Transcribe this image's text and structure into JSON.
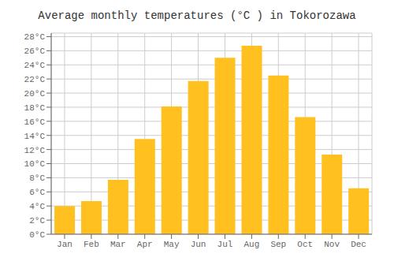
{
  "chart_data": {
    "type": "bar",
    "title": "Average monthly temperatures (°C ) in Tokorozawa",
    "categories": [
      "Jan",
      "Feb",
      "Mar",
      "Apr",
      "May",
      "Jun",
      "Jul",
      "Aug",
      "Sep",
      "Oct",
      "Nov",
      "Dec"
    ],
    "values": [
      4.0,
      4.7,
      7.7,
      13.5,
      18.1,
      21.7,
      25.0,
      26.7,
      22.5,
      16.6,
      11.3,
      6.5
    ],
    "color": "#FFC020",
    "ylim": [
      0,
      28.5
    ],
    "yticks": [
      {
        "value": 0,
        "label": "0°C"
      },
      {
        "value": 2,
        "label": "2°C"
      },
      {
        "value": 4,
        "label": "4°C"
      },
      {
        "value": 6,
        "label": "6°C"
      },
      {
        "value": 8,
        "label": "8°C"
      },
      {
        "value": 10,
        "label": "10°C"
      },
      {
        "value": 12,
        "label": "12°C"
      },
      {
        "value": 14,
        "label": "14°C"
      },
      {
        "value": 16,
        "label": "16°C"
      },
      {
        "value": 18,
        "label": "18°C"
      },
      {
        "value": 20,
        "label": "20°C"
      },
      {
        "value": 22,
        "label": "22°C"
      },
      {
        "value": 24,
        "label": "24°C"
      },
      {
        "value": 26,
        "label": "26°C"
      },
      {
        "value": 28,
        "label": "28°C"
      }
    ],
    "grid": true
  }
}
